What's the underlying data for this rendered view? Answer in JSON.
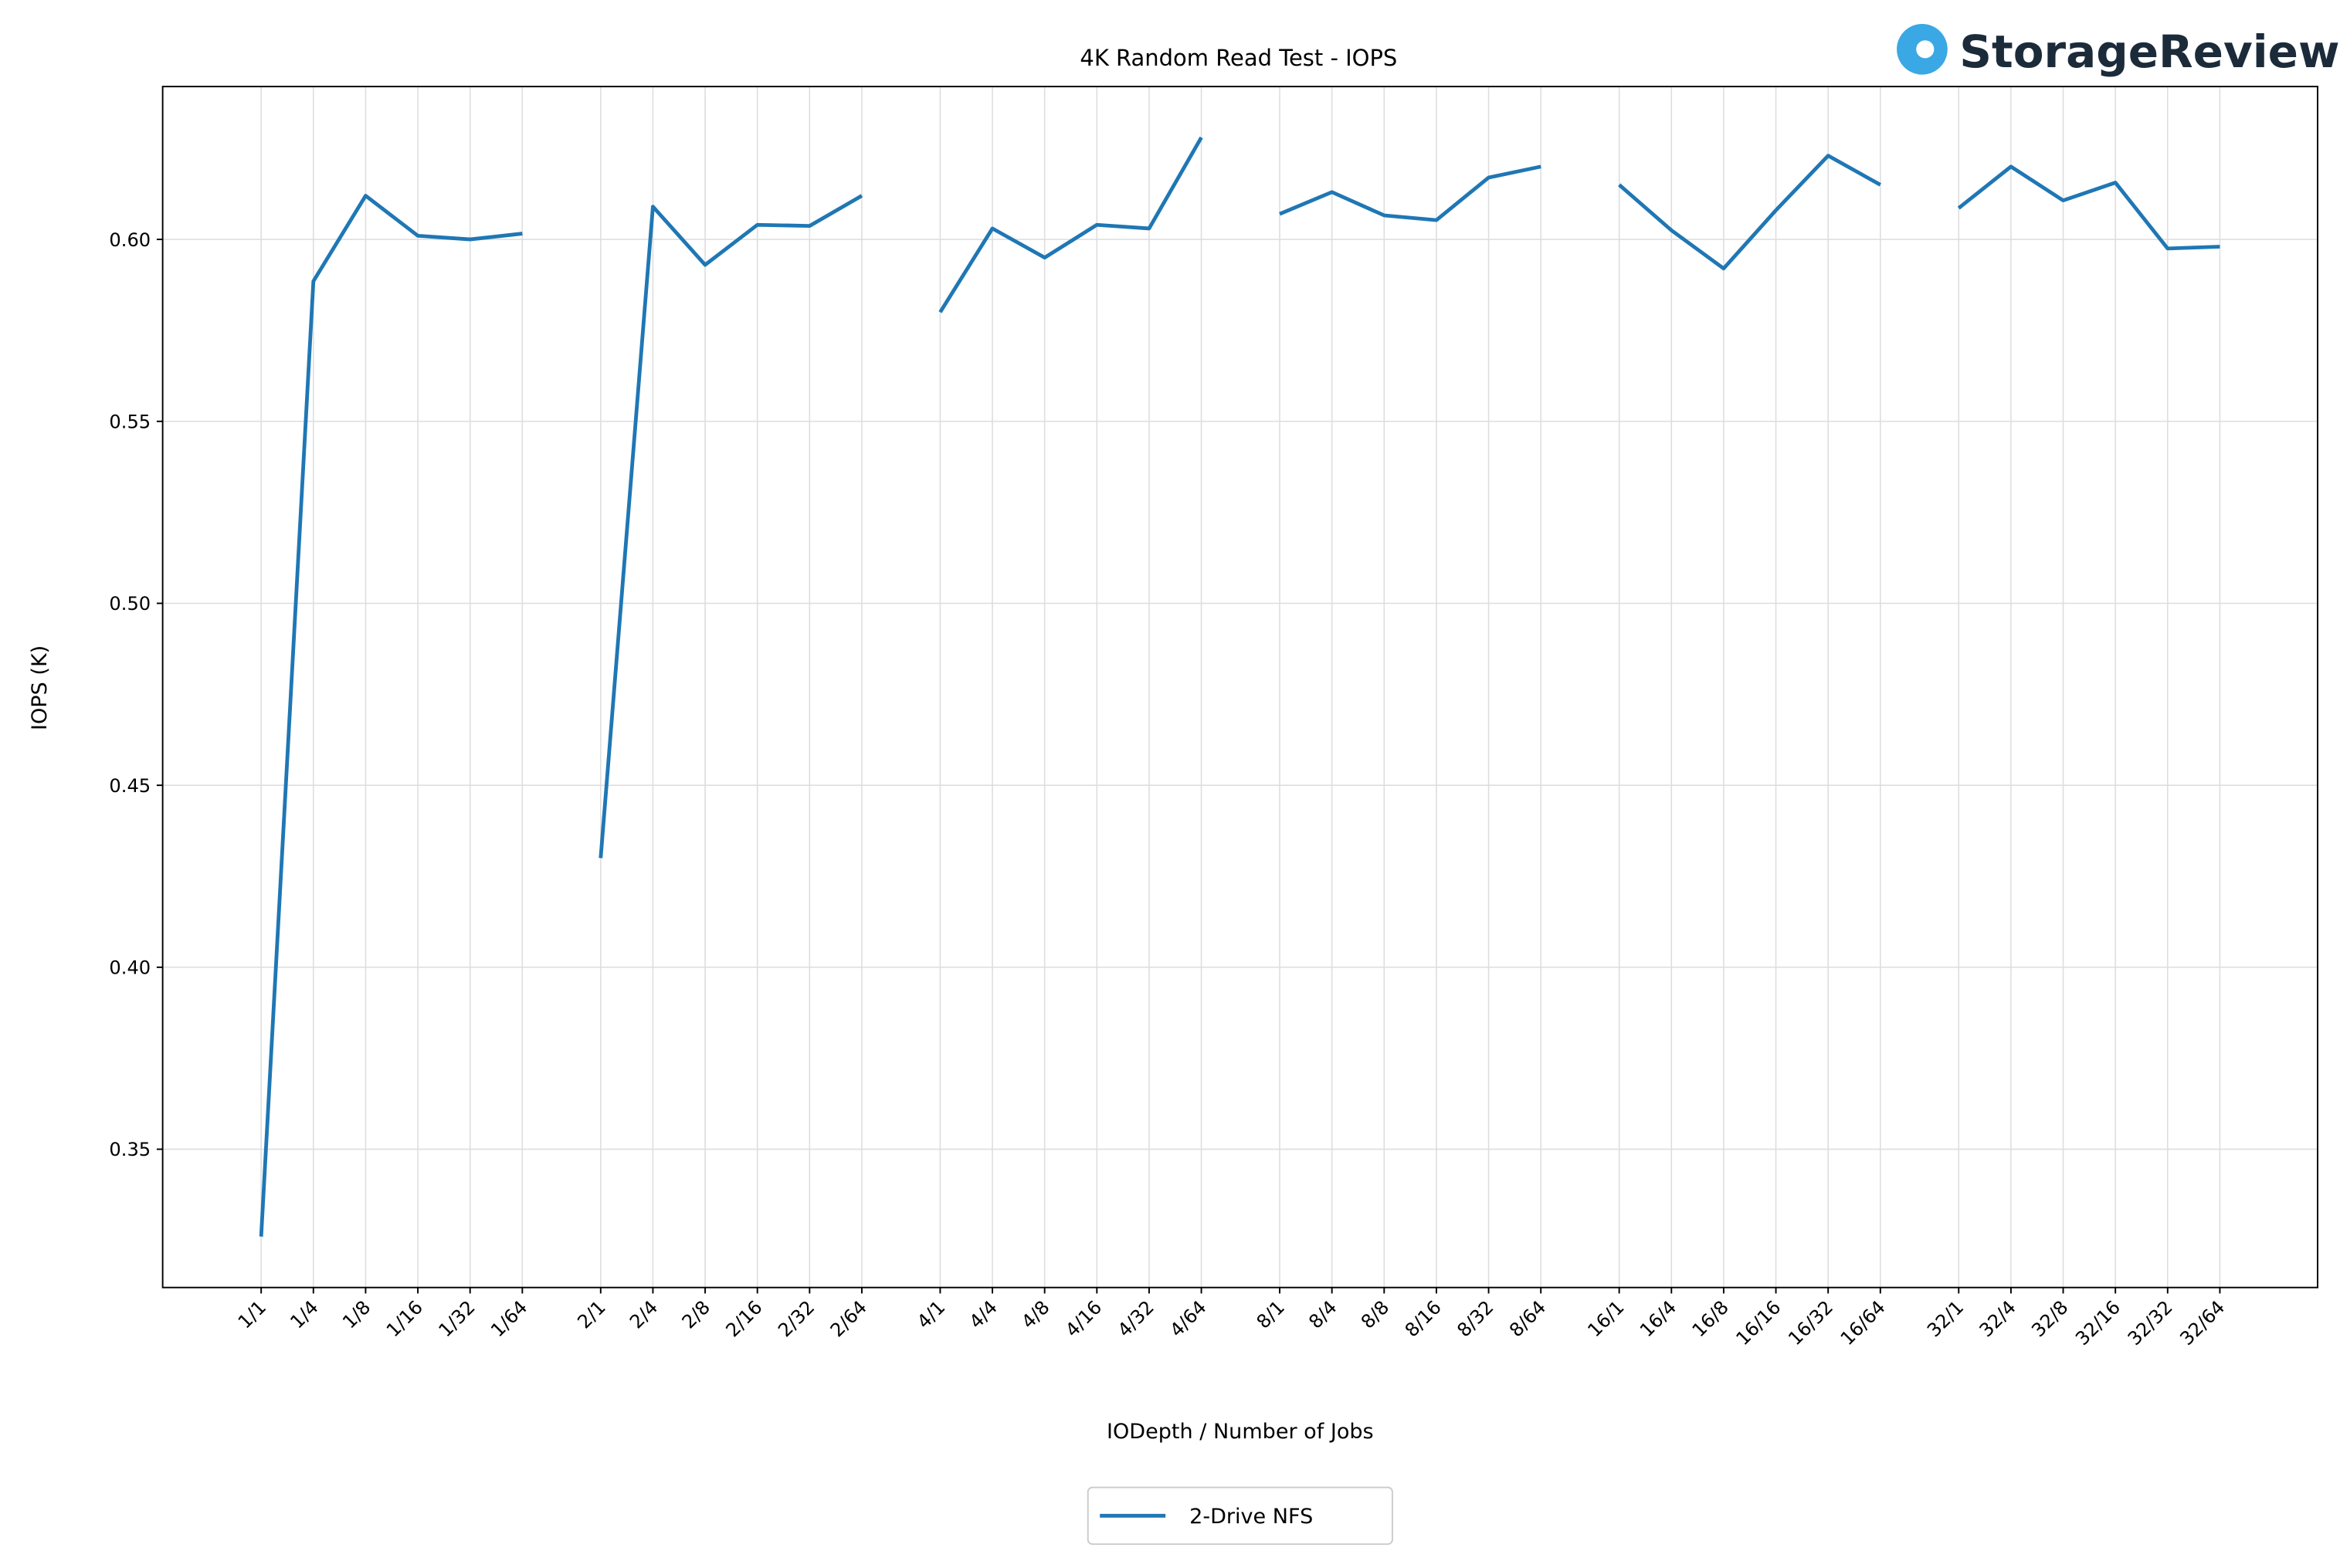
{
  "chart_data": {
    "type": "line",
    "title": "4K Random Read Test - IOPS",
    "logo": "StorageReview",
    "x_label": "IODepth / Number of Jobs",
    "y_label": "IOPS (K)",
    "categories": [
      "1/1",
      "1/4",
      "1/8",
      "1/16",
      "1/32",
      "1/64",
      null,
      "2/1",
      "2/4",
      "2/8",
      "2/16",
      "2/32",
      "2/64",
      null,
      "4/1",
      "4/4",
      "4/8",
      "4/16",
      "4/32",
      "4/64",
      null,
      "8/1",
      "8/4",
      "8/8",
      "8/16",
      "8/32",
      "8/64",
      null,
      "16/1",
      "16/4",
      "16/8",
      "16/16",
      "16/32",
      "16/64",
      null,
      "32/1",
      "32/4",
      "32/8",
      "32/16",
      "32/32",
      "32/64"
    ],
    "series": [
      {
        "name": "2-Drive NFS",
        "color": "#1f77b4",
        "values": [
          0.326,
          0.5885,
          0.612,
          0.601,
          0.6,
          0.6016,
          null,
          0.43,
          0.609,
          0.593,
          0.604,
          0.6037,
          0.612,
          null,
          0.58,
          0.603,
          0.595,
          0.604,
          0.603,
          0.628,
          null,
          0.607,
          0.613,
          0.6066,
          0.6053,
          0.617,
          0.62,
          null,
          0.615,
          0.6025,
          0.592,
          0.608,
          0.623,
          0.615,
          null,
          0.6086,
          0.62,
          0.6107,
          0.6156,
          0.5975,
          0.598
        ]
      }
    ],
    "ylim": [
      0.312,
      0.642
    ],
    "yticks": [
      0.35,
      {
        "value": 0.4,
        "label": "0.40"
      },
      0.45,
      {
        "value": 0.5,
        "label": "0.50"
      },
      0.55,
      {
        "value": 0.6,
        "label": "0.60"
      }
    ],
    "grid": true,
    "legend": "bottom"
  }
}
